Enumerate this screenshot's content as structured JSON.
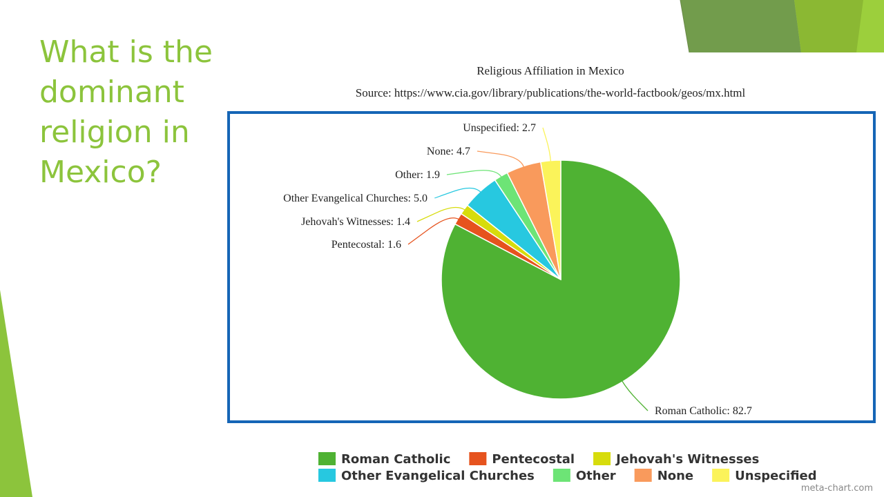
{
  "slide": {
    "title": "What is the dominant religion in Mexico?"
  },
  "watermark": "meta-chart.com",
  "colors": {
    "title": "#8cc43c",
    "frame": "#1565b6"
  },
  "chart_data": {
    "type": "pie",
    "title": "Religious Affiliation in Mexico",
    "subtitle": "Source: https://www.cia.gov/library/publications/the-world-factbook/geos/mx.html",
    "slices": [
      {
        "name": "Roman Catholic",
        "value": 82.7,
        "color": "#4fb233"
      },
      {
        "name": "Pentecostal",
        "value": 1.6,
        "color": "#e6531e"
      },
      {
        "name": "Jehovah's Witnesses",
        "value": 1.4,
        "color": "#d7dc0c"
      },
      {
        "name": "Other Evangelical Churches",
        "value": 5.0,
        "color": "#27c8e0"
      },
      {
        "name": "Other",
        "value": 1.9,
        "color": "#6de476"
      },
      {
        "name": "None",
        "value": 4.7,
        "color": "#f99a5c"
      },
      {
        "name": "Unspecified",
        "value": 2.7,
        "color": "#fbf35a"
      }
    ],
    "legend": {
      "placement": "bottom",
      "rows": [
        [
          "Roman Catholic",
          "Pentecostal",
          "Jehovah's Witnesses"
        ],
        [
          "Other Evangelical Churches",
          "Other",
          "None",
          "Unspecified"
        ]
      ]
    }
  }
}
